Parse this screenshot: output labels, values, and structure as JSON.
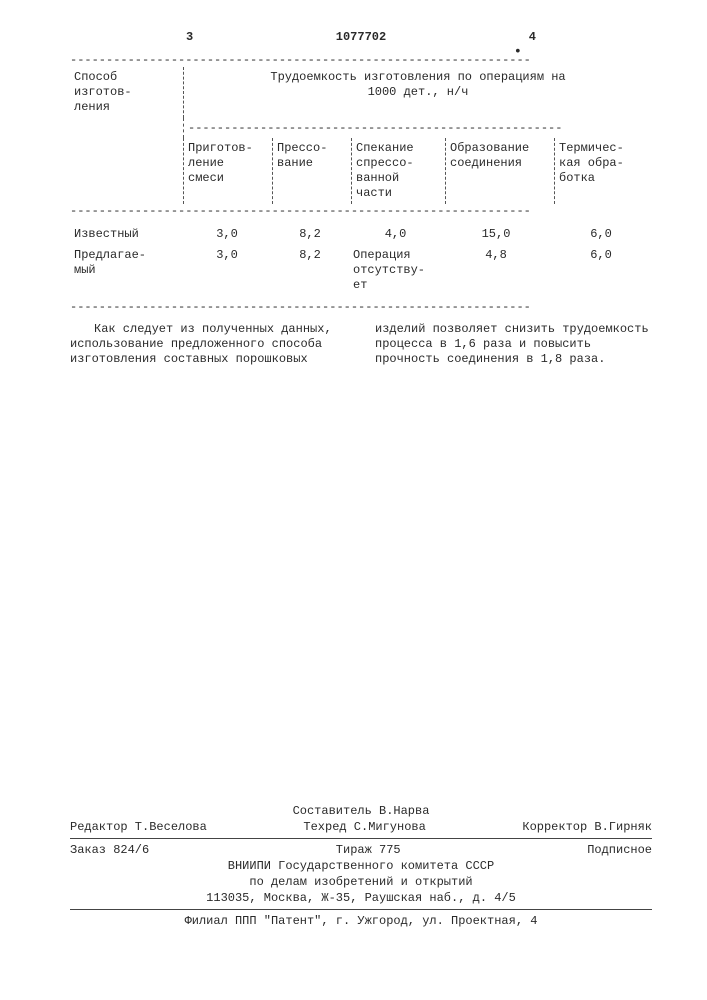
{
  "header": {
    "page_left": "3",
    "doc_number": "1077702",
    "page_right": "4"
  },
  "table": {
    "dash_full": "----------------------------------------------------------------",
    "dash_sub": "----------------------------------------------------",
    "row_label": "Способ изготов-\nления",
    "group_header": "Трудоемкость изготовления по операциям на\n1000 дет., н/ч",
    "columns": {
      "c1": "Приготов-\nление\nсмеси",
      "c2": "Прессо-\nвание",
      "c3": "Спекание\nспрессо-\nванной\nчасти",
      "c4": "Образование\nсоединения",
      "c5": "Термичес-\nкая обра-\nботка"
    },
    "rows": [
      {
        "label": "Известный",
        "c1": "3,0",
        "c2": "8,2",
        "c3": "4,0",
        "c4": "15,0",
        "c5": "6,0"
      },
      {
        "label": "Предлагае-\nмый",
        "c1": "3,0",
        "c2": "8,2",
        "c3": "Операция\nотсутству-\nет",
        "c4": "4,8",
        "c5": "6,0"
      }
    ]
  },
  "paragraph": {
    "left": "Как следует из полученных данных, использование предложенного способа изготовления составных порошковых",
    "right": "изделий позволяет снизить трудоемкость процесса в 1,6 раза и повысить прочность соединения в 1,8 раза."
  },
  "footer": {
    "compiler": "Составитель В.Нарва",
    "editor": "Редактор Т.Веселова",
    "tech": "Техред С.Мигунова",
    "corrector": "Корректор В.Гирняк",
    "order": "Заказ 824/6",
    "tirazh": "Тираж 775",
    "subscribed": "Подписное",
    "org1": "ВНИИПИ Государственного комитета СССР",
    "org2": "по делам изобретений и открытий",
    "addr": "113035, Москва, Ж-35, Раушская наб., д. 4/5",
    "branch": "Филиал ППП \"Патент\", г. Ужгород, ул. Проектная, 4"
  }
}
